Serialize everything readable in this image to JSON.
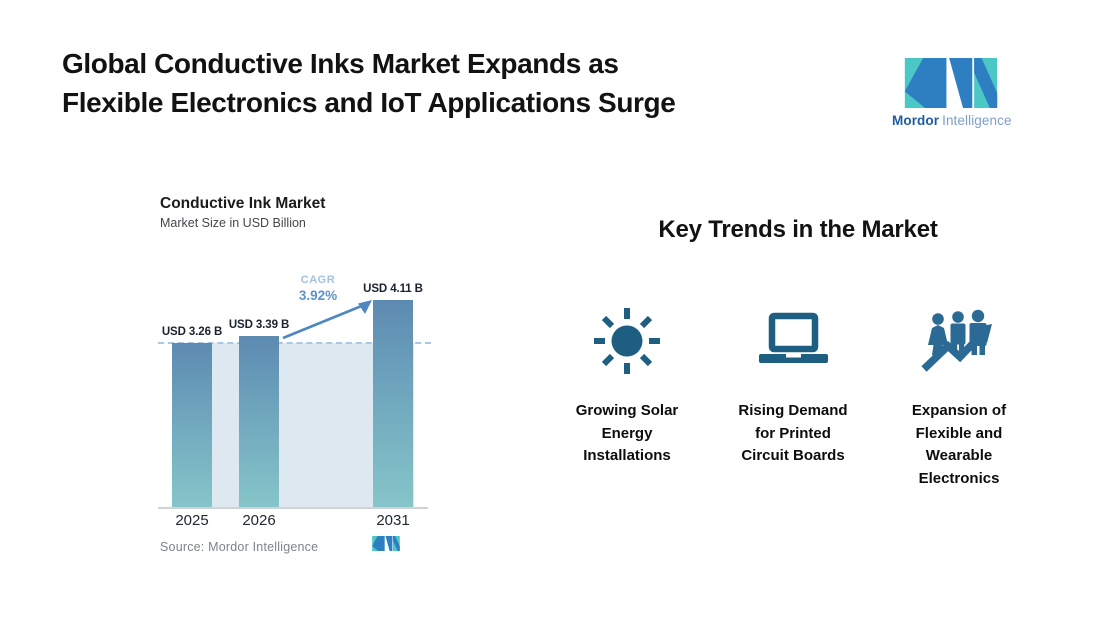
{
  "header": {
    "title_line1": "Global Conductive Inks Market Expands as",
    "title_line2": "Flexible Electronics and IoT Applications Surge"
  },
  "brand": {
    "name_bold": "Mordor",
    "name_light": "Intelligence"
  },
  "chart": {
    "title": "Conductive Ink Market",
    "subtitle": "Market Size in USD Billion",
    "cagr_label": "CAGR",
    "cagr_value": "3.92%",
    "source": "Source: Mordor Intelligence"
  },
  "chart_data": {
    "type": "bar",
    "title": "Conductive Ink Market",
    "subtitle": "Market Size in USD Billion",
    "categories": [
      "2025",
      "2026",
      "2031"
    ],
    "values": [
      3.26,
      3.39,
      4.11
    ],
    "value_labels": [
      "USD 3.26 B",
      "USD 3.39 B",
      "USD 4.11 B"
    ],
    "cagr": "3.92%",
    "ylim": [
      0,
      4.5
    ],
    "grid": false,
    "legend": "none",
    "annotations": [
      "CAGR 3.92% arrow from 2026 bar to 2031 bar",
      "dashed horizontal reference line at 2025 bar level"
    ]
  },
  "trends": {
    "heading": "Key Trends in the Market",
    "items": [
      {
        "icon": "sun-icon",
        "label": "Growing Solar\nEnergy\nInstallations"
      },
      {
        "icon": "laptop-icon",
        "label": "Rising Demand\nfor Printed\nCircuit Boards"
      },
      {
        "icon": "people-growth-icon",
        "label": "Expansion of\nFlexible and\nWearable\nElectronics"
      }
    ]
  },
  "colors": {
    "bar_top": "#5d8ab1",
    "bar_bottom": "#86c5c9",
    "light_area": "#dde8f1",
    "dashed_line": "#a8c8e4",
    "arrow_blue": "#4e87c2",
    "icon_teal_blue": "#1e5f81",
    "logo_teal": "#4bc8c6",
    "logo_blue": "#2d7fc1",
    "text_dark": "#121212",
    "source_gray": "#7d8389"
  }
}
